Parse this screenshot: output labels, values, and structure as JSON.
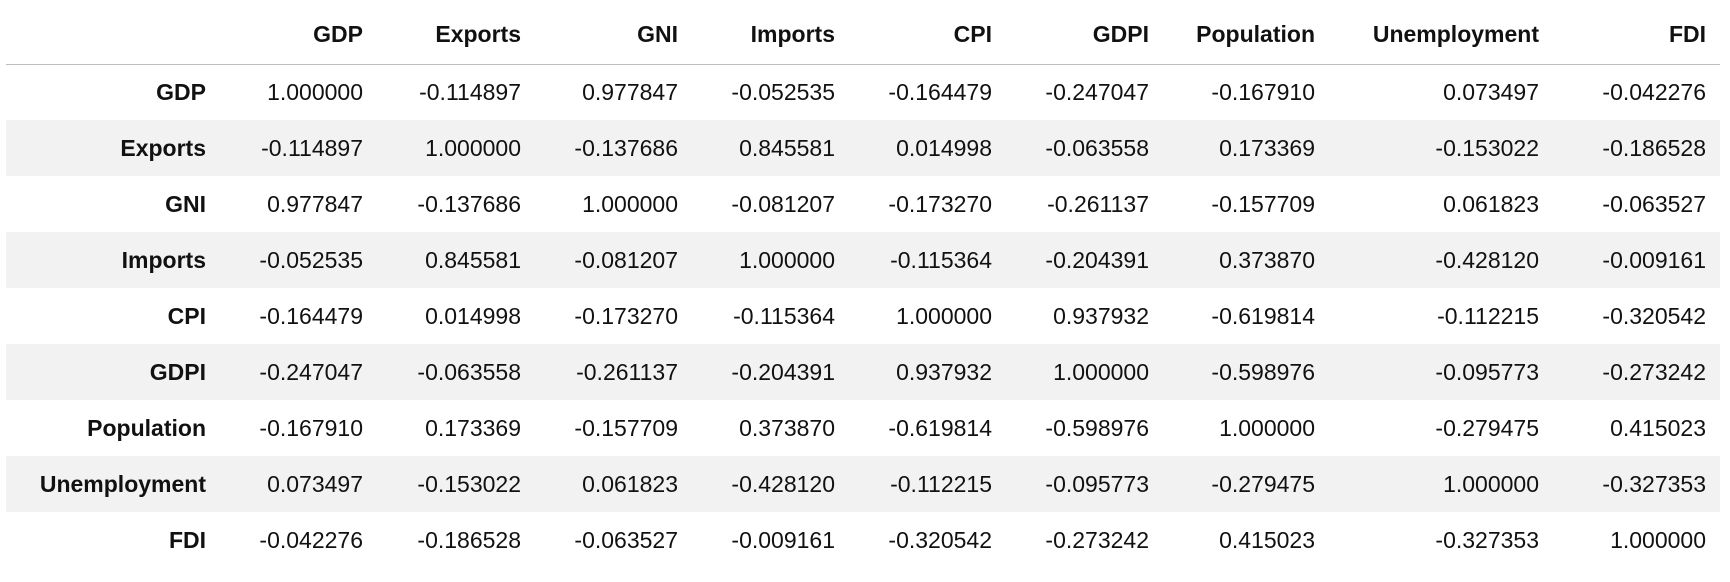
{
  "chart_data": {
    "type": "table",
    "index_header": "",
    "columns": [
      "GDP",
      "Exports",
      "GNI",
      "Imports",
      "CPI",
      "GDPI",
      "Population",
      "Unemployment",
      "FDI"
    ],
    "rows": [
      {
        "label": "GDP",
        "values": [
          "1.000000",
          "-0.114897",
          "0.977847",
          "-0.052535",
          "-0.164479",
          "-0.247047",
          "-0.167910",
          "0.073497",
          "-0.042276"
        ]
      },
      {
        "label": "Exports",
        "values": [
          "-0.114897",
          "1.000000",
          "-0.137686",
          "0.845581",
          "0.014998",
          "-0.063558",
          "0.173369",
          "-0.153022",
          "-0.186528"
        ]
      },
      {
        "label": "GNI",
        "values": [
          "0.977847",
          "-0.137686",
          "1.000000",
          "-0.081207",
          "-0.173270",
          "-0.261137",
          "-0.157709",
          "0.061823",
          "-0.063527"
        ]
      },
      {
        "label": "Imports",
        "values": [
          "-0.052535",
          "0.845581",
          "-0.081207",
          "1.000000",
          "-0.115364",
          "-0.204391",
          "0.373870",
          "-0.428120",
          "-0.009161"
        ]
      },
      {
        "label": "CPI",
        "values": [
          "-0.164479",
          "0.014998",
          "-0.173270",
          "-0.115364",
          "1.000000",
          "0.937932",
          "-0.619814",
          "-0.112215",
          "-0.320542"
        ]
      },
      {
        "label": "GDPI",
        "values": [
          "-0.247047",
          "-0.063558",
          "-0.261137",
          "-0.204391",
          "0.937932",
          "1.000000",
          "-0.598976",
          "-0.095773",
          "-0.273242"
        ]
      },
      {
        "label": "Population",
        "values": [
          "-0.167910",
          "0.173369",
          "-0.157709",
          "0.373870",
          "-0.619814",
          "-0.598976",
          "1.000000",
          "-0.279475",
          "0.415023"
        ]
      },
      {
        "label": "Unemployment",
        "values": [
          "0.073497",
          "-0.153022",
          "0.061823",
          "-0.428120",
          "-0.112215",
          "-0.095773",
          "-0.279475",
          "1.000000",
          "-0.327353"
        ]
      },
      {
        "label": "FDI",
        "values": [
          "-0.042276",
          "-0.186528",
          "-0.063527",
          "-0.009161",
          "-0.320542",
          "-0.273242",
          "0.415023",
          "-0.327353",
          "1.000000"
        ]
      }
    ]
  }
}
